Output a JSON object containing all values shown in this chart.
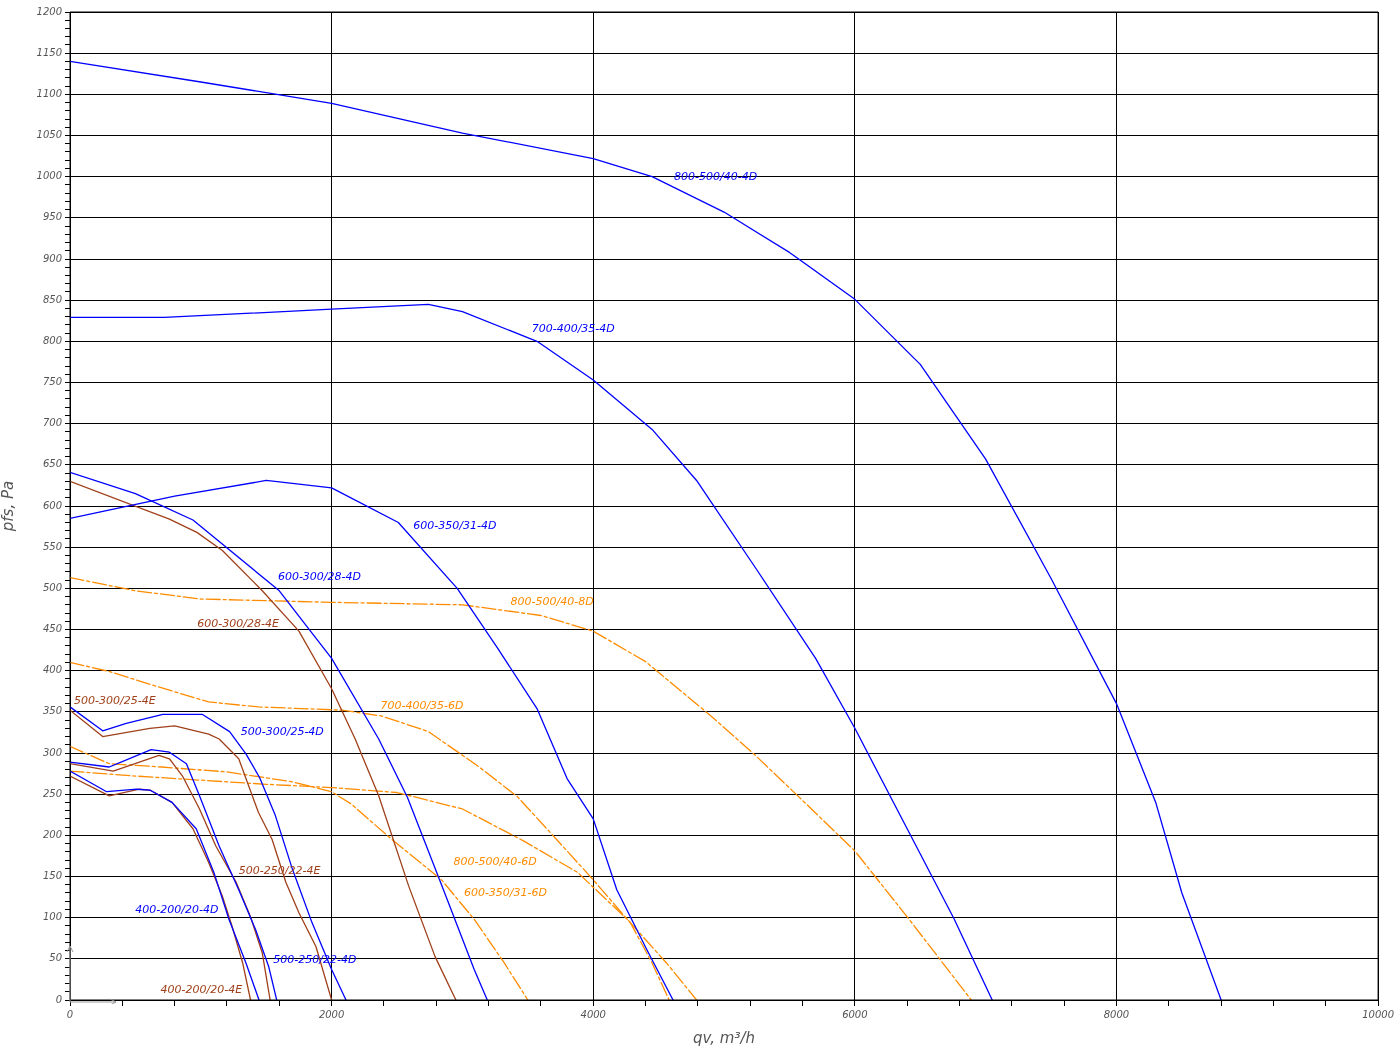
{
  "chart_data": {
    "type": "line",
    "xlabel": "qv, m³/h",
    "ylabel": "pfs, Pa",
    "xlim": [
      0,
      10000
    ],
    "ylim": [
      0,
      1200
    ],
    "xticks": [
      0,
      {
        "value": 400,
        "label": null
      },
      {
        "value": 800,
        "label": null
      },
      {
        "value": 1200,
        "label": null
      },
      {
        "value": 1600,
        "label": null
      },
      2000,
      {
        "value": 2400,
        "label": null
      },
      {
        "value": 2800,
        "label": null
      },
      {
        "value": 3200,
        "label": null
      },
      {
        "value": 3600,
        "label": null
      },
      4000,
      {
        "value": 4400,
        "label": null
      },
      {
        "value": 4800,
        "label": null
      },
      {
        "value": 5200,
        "label": null
      },
      {
        "value": 5600,
        "label": null
      },
      6000,
      {
        "value": 6400,
        "label": null
      },
      {
        "value": 6800,
        "label": null
      },
      {
        "value": 7200,
        "label": null
      },
      {
        "value": 7600,
        "label": null
      },
      8000,
      {
        "value": 8400,
        "label": null
      },
      {
        "value": 8800,
        "label": null
      },
      {
        "value": 9200,
        "label": null
      },
      {
        "value": 9600,
        "label": null
      },
      10000
    ],
    "yticks": [
      0,
      {
        "value": 10,
        "label": null
      },
      {
        "value": 20,
        "label": null
      },
      {
        "value": 30,
        "label": null
      },
      {
        "value": 40,
        "label": null
      },
      50,
      {
        "value": 60,
        "label": null
      },
      {
        "value": 70,
        "label": null
      },
      {
        "value": 80,
        "label": null
      },
      {
        "value": 90,
        "label": null
      },
      100,
      {
        "value": 110,
        "label": null
      },
      {
        "value": 120,
        "label": null
      },
      {
        "value": 130,
        "label": null
      },
      {
        "value": 140,
        "label": null
      },
      150,
      {
        "value": 160,
        "label": null
      },
      {
        "value": 170,
        "label": null
      },
      {
        "value": 180,
        "label": null
      },
      {
        "value": 190,
        "label": null
      },
      200,
      {
        "value": 210,
        "label": null
      },
      {
        "value": 220,
        "label": null
      },
      {
        "value": 230,
        "label": null
      },
      {
        "value": 240,
        "label": null
      },
      250,
      {
        "value": 260,
        "label": null
      },
      {
        "value": 270,
        "label": null
      },
      {
        "value": 280,
        "label": null
      },
      {
        "value": 290,
        "label": null
      },
      300,
      {
        "value": 310,
        "label": null
      },
      {
        "value": 320,
        "label": null
      },
      {
        "value": 330,
        "label": null
      },
      {
        "value": 340,
        "label": null
      },
      350,
      {
        "value": 360,
        "label": null
      },
      {
        "value": 370,
        "label": null
      },
      {
        "value": 380,
        "label": null
      },
      {
        "value": 390,
        "label": null
      },
      400,
      {
        "value": 410,
        "label": null
      },
      {
        "value": 420,
        "label": null
      },
      {
        "value": 430,
        "label": null
      },
      {
        "value": 440,
        "label": null
      },
      450,
      {
        "value": 460,
        "label": null
      },
      {
        "value": 470,
        "label": null
      },
      {
        "value": 480,
        "label": null
      },
      {
        "value": 490,
        "label": null
      },
      500,
      {
        "value": 510,
        "label": null
      },
      {
        "value": 520,
        "label": null
      },
      {
        "value": 530,
        "label": null
      },
      {
        "value": 540,
        "label": null
      },
      550,
      {
        "value": 560,
        "label": null
      },
      {
        "value": 570,
        "label": null
      },
      {
        "value": 580,
        "label": null
      },
      {
        "value": 590,
        "label": null
      },
      600,
      {
        "value": 610,
        "label": null
      },
      {
        "value": 620,
        "label": null
      },
      {
        "value": 630,
        "label": null
      },
      {
        "value": 640,
        "label": null
      },
      650,
      {
        "value": 660,
        "label": null
      },
      {
        "value": 670,
        "label": null
      },
      {
        "value": 680,
        "label": null
      },
      {
        "value": 690,
        "label": null
      },
      700,
      {
        "value": 710,
        "label": null
      },
      {
        "value": 720,
        "label": null
      },
      {
        "value": 730,
        "label": null
      },
      {
        "value": 740,
        "label": null
      },
      750,
      {
        "value": 760,
        "label": null
      },
      {
        "value": 770,
        "label": null
      },
      {
        "value": 780,
        "label": null
      },
      {
        "value": 790,
        "label": null
      },
      800,
      {
        "value": 810,
        "label": null
      },
      {
        "value": 820,
        "label": null
      },
      {
        "value": 830,
        "label": null
      },
      {
        "value": 840,
        "label": null
      },
      850,
      {
        "value": 860,
        "label": null
      },
      {
        "value": 870,
        "label": null
      },
      {
        "value": 880,
        "label": null
      },
      {
        "value": 890,
        "label": null
      },
      900,
      {
        "value": 910,
        "label": null
      },
      {
        "value": 920,
        "label": null
      },
      {
        "value": 930,
        "label": null
      },
      {
        "value": 940,
        "label": null
      },
      950,
      {
        "value": 960,
        "label": null
      },
      {
        "value": 970,
        "label": null
      },
      {
        "value": 980,
        "label": null
      },
      {
        "value": 990,
        "label": null
      },
      1000,
      {
        "value": 1010,
        "label": null
      },
      {
        "value": 1020,
        "label": null
      },
      {
        "value": 1030,
        "label": null
      },
      {
        "value": 1040,
        "label": null
      },
      1050,
      {
        "value": 1060,
        "label": null
      },
      {
        "value": 1070,
        "label": null
      },
      {
        "value": 1080,
        "label": null
      },
      {
        "value": 1090,
        "label": null
      },
      1100,
      {
        "value": 1110,
        "label": null
      },
      {
        "value": 1120,
        "label": null
      },
      {
        "value": 1130,
        "label": null
      },
      {
        "value": 1140,
        "label": null
      },
      1150,
      {
        "value": 1160,
        "label": null
      },
      {
        "value": 1170,
        "label": null
      },
      {
        "value": 1180,
        "label": null
      },
      {
        "value": 1190,
        "label": null
      },
      1200
    ],
    "grid": true,
    "legend": false,
    "marker": "none",
    "series": [
      {
        "name": "800-500/40-4D",
        "color": "#0000ff",
        "line_style": "solid",
        "x": [
          0,
          1000,
          2000,
          3000,
          4000,
          4450,
          5000,
          5500,
          6000,
          6500,
          7000,
          7500,
          8000,
          8300,
          8500,
          8800
        ],
        "values": [
          1140,
          1115,
          1089,
          1053,
          1022,
          1000,
          957,
          908,
          851,
          772,
          657,
          512,
          360,
          240,
          130,
          0
        ]
      },
      {
        "name": "700-400/35-4D",
        "color": "#0000ff",
        "line_style": "solid",
        "x": [
          0,
          720,
          2000,
          2740,
          3000,
          3570,
          4000,
          4450,
          4790,
          5240,
          5700,
          6000,
          6380,
          6760,
          7050
        ],
        "values": [
          829,
          829,
          839,
          845,
          836,
          800,
          753,
          693,
          631,
          525,
          415,
          330,
          214,
          98,
          0
        ]
      },
      {
        "name": "600-350/31-4D",
        "color": "#0000ff",
        "line_style": "solid",
        "x": [
          0,
          800,
          1500,
          2000,
          2510,
          2960,
          3270,
          3570,
          3800,
          4000,
          4180,
          4410,
          4610
        ],
        "values": [
          585,
          612,
          631,
          622,
          580,
          500,
          427,
          354,
          269,
          220,
          134,
          61,
          0
        ]
      },
      {
        "name": "600-300/28-4D",
        "color": "#0000ff",
        "line_style": "solid",
        "x": [
          0,
          500,
          940,
          1600,
          2000,
          2360,
          2580,
          2840,
          3090,
          3190
        ],
        "values": [
          641,
          615,
          583,
          497,
          415,
          317,
          246,
          140,
          37,
          0
        ]
      },
      {
        "name": "600-300/28-4E",
        "color": "#a0401a",
        "line_style": "solid",
        "x": [
          0,
          760,
          970,
          1165,
          1470,
          1750,
          2000,
          2180,
          2360,
          2590,
          2790,
          2950
        ],
        "values": [
          630,
          584,
          568,
          546,
          497,
          448,
          378,
          317,
          248,
          138,
          53,
          0
        ]
      },
      {
        "name": "500-300/25-4D",
        "color": "#0000ff",
        "line_style": "solid",
        "x": [
          0,
          250,
          430,
          710,
          1010,
          1220,
          1345,
          1450,
          1570,
          1700,
          1850,
          2000,
          2110
        ],
        "values": [
          356,
          327,
          336,
          347,
          347,
          326,
          299,
          270,
          224,
          159,
          94,
          37,
          0
        ]
      },
      {
        "name": "500-300/25-4E",
        "color": "#a0401a",
        "line_style": "solid",
        "x": [
          0,
          250,
          610,
          800,
          1060,
          1140,
          1290,
          1440,
          1545,
          1650,
          1750,
          1880,
          2000
        ],
        "values": [
          352,
          320,
          330,
          333,
          323,
          317,
          293,
          228,
          195,
          143,
          106,
          65,
          0
        ]
      },
      {
        "name": "500-250/22-4D",
        "color": "#0000ff",
        "line_style": "solid",
        "x": [
          0,
          300,
          620,
          760,
          890,
          990,
          1140,
          1290,
          1420,
          1520,
          1580
        ],
        "values": [
          289,
          283,
          304,
          301,
          287,
          248,
          187,
          134,
          85,
          40,
          0
        ]
      },
      {
        "name": "500-250/22-4E",
        "color": "#a0401a",
        "line_style": "solid",
        "x": [
          0,
          330,
          680,
          760,
          860,
          990,
          1115,
          1270,
          1380,
          1470,
          1530
        ],
        "values": [
          287,
          278,
          297,
          293,
          272,
          232,
          187,
          143,
          101,
          57,
          0
        ]
      },
      {
        "name": "400-200/20-4D",
        "color": "#0000ff",
        "line_style": "solid",
        "x": [
          0,
          280,
          510,
          610,
          780,
          965,
          1100,
          1215,
          1345,
          1445
        ],
        "values": [
          278,
          253,
          256,
          255,
          240,
          208,
          155,
          98,
          45,
          0
        ]
      },
      {
        "name": "400-200/20-4E",
        "color": "#a0401a",
        "line_style": "solid",
        "x": [
          0,
          300,
          530,
          610,
          780,
          940,
          1060,
          1165,
          1240,
          1320,
          1380
        ],
        "values": [
          272,
          248,
          256,
          255,
          240,
          208,
          167,
          126,
          89,
          45,
          0
        ]
      },
      {
        "name": "800-500/40-8D",
        "color": "#ff8c00",
        "line_style": "dashed",
        "x": [
          0,
          500,
          1000,
          2000,
          3000,
          3600,
          4000,
          4400,
          4900,
          5240,
          5570,
          6000,
          6400,
          6890
        ],
        "values": [
          513,
          497,
          487,
          483,
          480,
          467,
          448,
          411,
          345,
          297,
          247,
          181,
          101,
          0
        ]
      },
      {
        "name": "700-400/35-6D",
        "color": "#ff8c00",
        "line_style": "dashed",
        "x": [
          0,
          300,
          660,
          1060,
          1440,
          2080,
          2380,
          2740,
          3120,
          3420,
          3720,
          4000,
          4260,
          4560,
          4790
        ],
        "values": [
          410,
          399,
          381,
          362,
          356,
          352,
          345,
          326,
          284,
          247,
          195,
          146,
          98,
          45,
          0
        ]
      },
      {
        "name": "800-500/40-6D",
        "color": "#ff8c00",
        "line_style": "dashed",
        "x": [
          0,
          500,
          1000,
          1500,
          2000,
          2500,
          3000,
          3470,
          3880,
          4280,
          4450,
          4580
        ],
        "values": [
          278,
          272,
          267,
          262,
          258,
          252,
          232,
          193,
          155,
          95,
          45,
          0
        ]
      },
      {
        "name": "600-350/31-6D",
        "color": "#ff8c00",
        "line_style": "dashed",
        "x": [
          0,
          300,
          700,
          1200,
          1700,
          2000,
          2150,
          2460,
          2840,
          3090,
          3320,
          3500
        ],
        "values": [
          308,
          287,
          283,
          277,
          265,
          253,
          238,
          195,
          146,
          98,
          45,
          0
        ]
      }
    ]
  }
}
